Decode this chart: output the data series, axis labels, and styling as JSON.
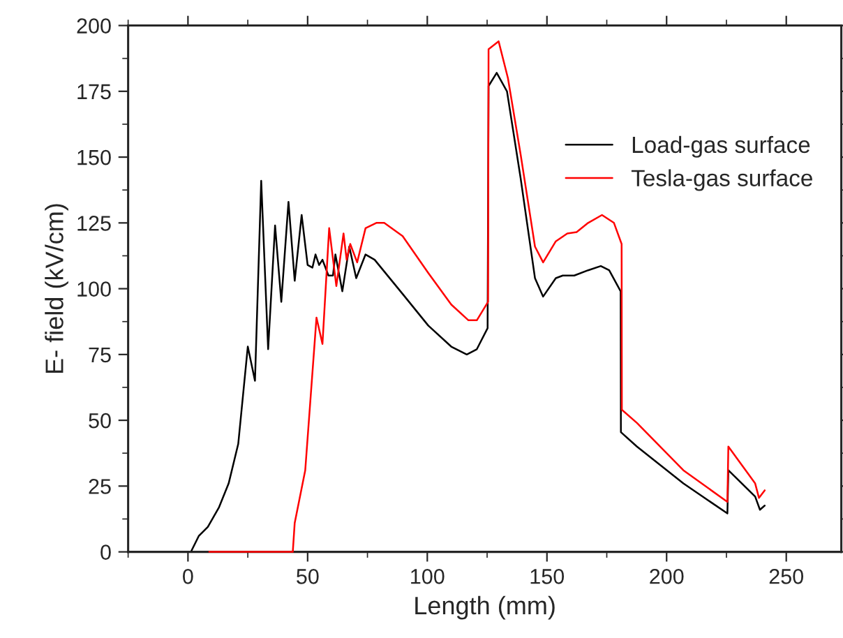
{
  "chart_data": {
    "type": "line",
    "xlabel": "Length (mm)",
    "ylabel": "E- field (kV/cm)",
    "xlim": [
      -25,
      273
    ],
    "ylim": [
      0,
      200
    ],
    "xticks": [
      0,
      50,
      100,
      150,
      200,
      250
    ],
    "yticks": [
      0,
      25,
      50,
      75,
      100,
      125,
      150,
      175,
      200
    ],
    "grid": false,
    "legend": "top right",
    "marker": "none",
    "line_style": "solid",
    "series": [
      {
        "name": "Load-gas surface",
        "color": "#000000",
        "x": [
          1.5,
          4.5,
          8.3,
          13,
          17,
          21,
          25,
          28,
          30.6,
          33.5,
          36.4,
          39,
          42,
          44.6,
          47.5,
          50,
          52,
          53.3,
          54.8,
          56.2,
          58.7,
          60.6,
          61.6,
          64.5,
          67.4,
          70.3,
          74.2,
          78,
          89.7,
          100.4,
          110,
          116.5,
          120.7,
          125.2,
          125.6,
          129,
          133.3,
          139,
          145,
          148.4,
          153.7,
          156.6,
          161.4,
          167.2,
          172.5,
          176,
          180.8,
          180.9,
          187.6,
          207,
          225.4,
          225.8,
          237,
          239,
          241
        ],
        "values": [
          0.5,
          6,
          9.5,
          17,
          26,
          41,
          78,
          65,
          141,
          77,
          124,
          95,
          133,
          103,
          128,
          109,
          108,
          113,
          109,
          111,
          105,
          105,
          113,
          99,
          116,
          104,
          113,
          111,
          98,
          86,
          78,
          75,
          77,
          85,
          177,
          182,
          175,
          142,
          104,
          97,
          104,
          105,
          105,
          107,
          108.6,
          107,
          99,
          45.5,
          40,
          26,
          14.6,
          31,
          21,
          16,
          17.6
        ]
      },
      {
        "name": "Tesla-gas surface",
        "color": "#ff0000",
        "x": [
          8.9,
          43.8,
          44.6,
          49,
          53.7,
          56.2,
          59,
          62,
          65,
          66.3,
          67.8,
          70.7,
          74.2,
          78.7,
          82,
          89.7,
          100.4,
          110,
          117.2,
          120.7,
          125.4,
          125.6,
          129.8,
          133.7,
          139,
          145,
          148.4,
          153.7,
          158.5,
          162.4,
          167.2,
          173,
          178,
          181.2,
          181.3,
          187.6,
          207,
          225.4,
          225.8,
          237,
          238.6,
          241
        ],
        "values": [
          0,
          0,
          11,
          31,
          89,
          79,
          123,
          101,
          121,
          111,
          117,
          110,
          123,
          125,
          125,
          120,
          106,
          94,
          88,
          88,
          95,
          191,
          194,
          180,
          151,
          116,
          110,
          118,
          121,
          121.5,
          125,
          128,
          125,
          117,
          54,
          49,
          31,
          19,
          40,
          26,
          20.5,
          23.4
        ]
      }
    ]
  }
}
